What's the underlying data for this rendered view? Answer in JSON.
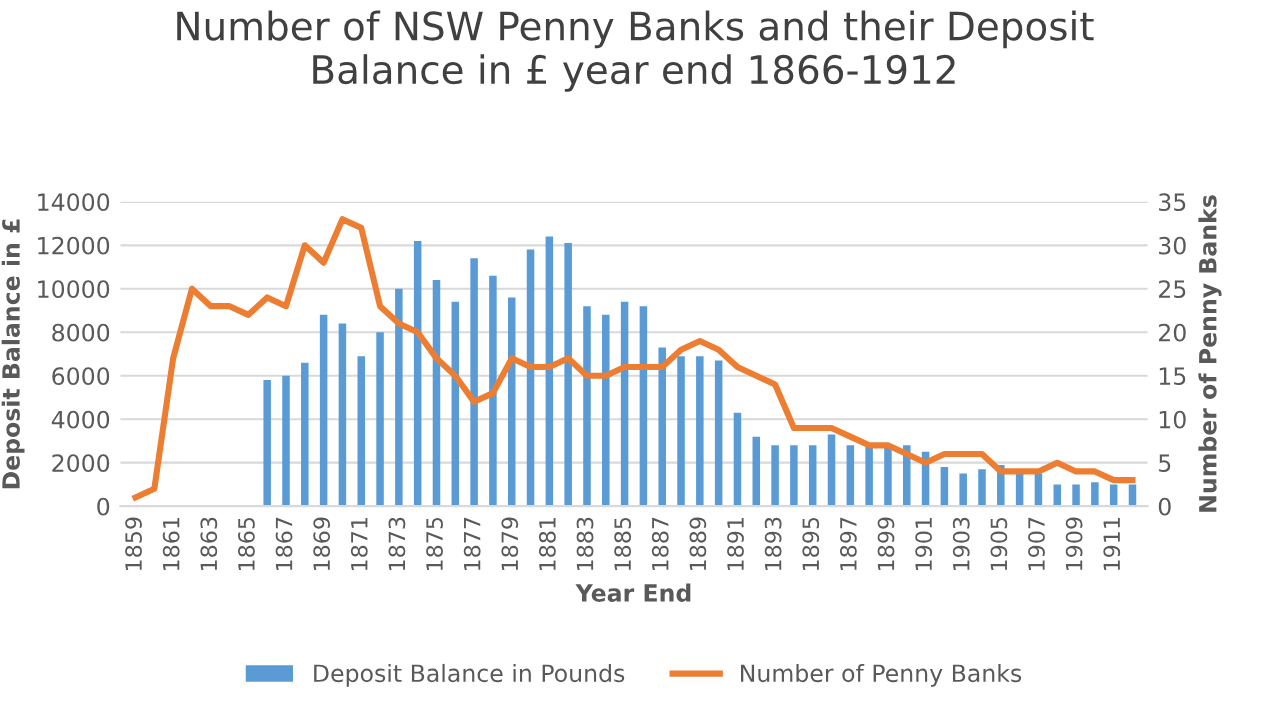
{
  "chart_data": {
    "type": "bar",
    "title": "Number of NSW Penny Banks and their Deposit\nBalance in £ year end 1866-1912",
    "xlabel": "Year End",
    "ylabel": "Deposit Balance in £",
    "y2label": "Number of Penny Banks",
    "categories": [
      "1859",
      null,
      "1861",
      null,
      "1863",
      null,
      "1865",
      null,
      "1867",
      null,
      "1869",
      null,
      "1871",
      null,
      "1873",
      null,
      "1875",
      null,
      "1877",
      null,
      "1879",
      null,
      "1881",
      null,
      "1883",
      null,
      "1885",
      null,
      "1887",
      null,
      "1889",
      null,
      "1891",
      null,
      "1893",
      null,
      "1895",
      null,
      "1897",
      null,
      "1899",
      null,
      "1901",
      null,
      "1903",
      null,
      "1905",
      null,
      "1907",
      null,
      "1909",
      null,
      "1911",
      null
    ],
    "series": [
      {
        "name": "Deposit Balance in Pounds",
        "color": "#5b9bd5",
        "values": [
          null,
          null,
          null,
          null,
          null,
          null,
          null,
          5800,
          6000,
          6600,
          8800,
          8400,
          6900,
          8000,
          10000,
          12200,
          10400,
          9400,
          11400,
          10600,
          9600,
          11800,
          12400,
          12100,
          9200,
          8800,
          9400,
          9200,
          7300,
          6900,
          6900,
          6700,
          4300,
          3200,
          2800,
          2800,
          2800,
          3300,
          2800,
          2800,
          2800,
          2800,
          2500,
          1800,
          1500,
          1700,
          1900,
          1500,
          1500,
          1000,
          1000,
          1100,
          1000,
          1000
        ]
      },
      {
        "name": "Number of Penny Banks",
        "type": "line",
        "axis": "y2",
        "color": "#ed7d31",
        "values": [
          1,
          2,
          17,
          25,
          23,
          23,
          22,
          24,
          23,
          30,
          28,
          33,
          32,
          23,
          21,
          20,
          17,
          15,
          12,
          13,
          17,
          16,
          16,
          17,
          15,
          15,
          16,
          16,
          16,
          18,
          19,
          18,
          16,
          15,
          14,
          9,
          9,
          9,
          8,
          7,
          7,
          6,
          5,
          6,
          6,
          6,
          4,
          4,
          4,
          5,
          4,
          4,
          3,
          3
        ]
      }
    ],
    "ylim": [
      0,
      14000
    ],
    "yticks": [
      0,
      2000,
      4000,
      6000,
      8000,
      10000,
      12000,
      14000
    ],
    "y2lim": [
      0,
      35
    ],
    "y2ticks": [
      0,
      5,
      10,
      15,
      20,
      25,
      30,
      35
    ],
    "grid": "y",
    "legend": "bottom",
    "marker": "none"
  }
}
